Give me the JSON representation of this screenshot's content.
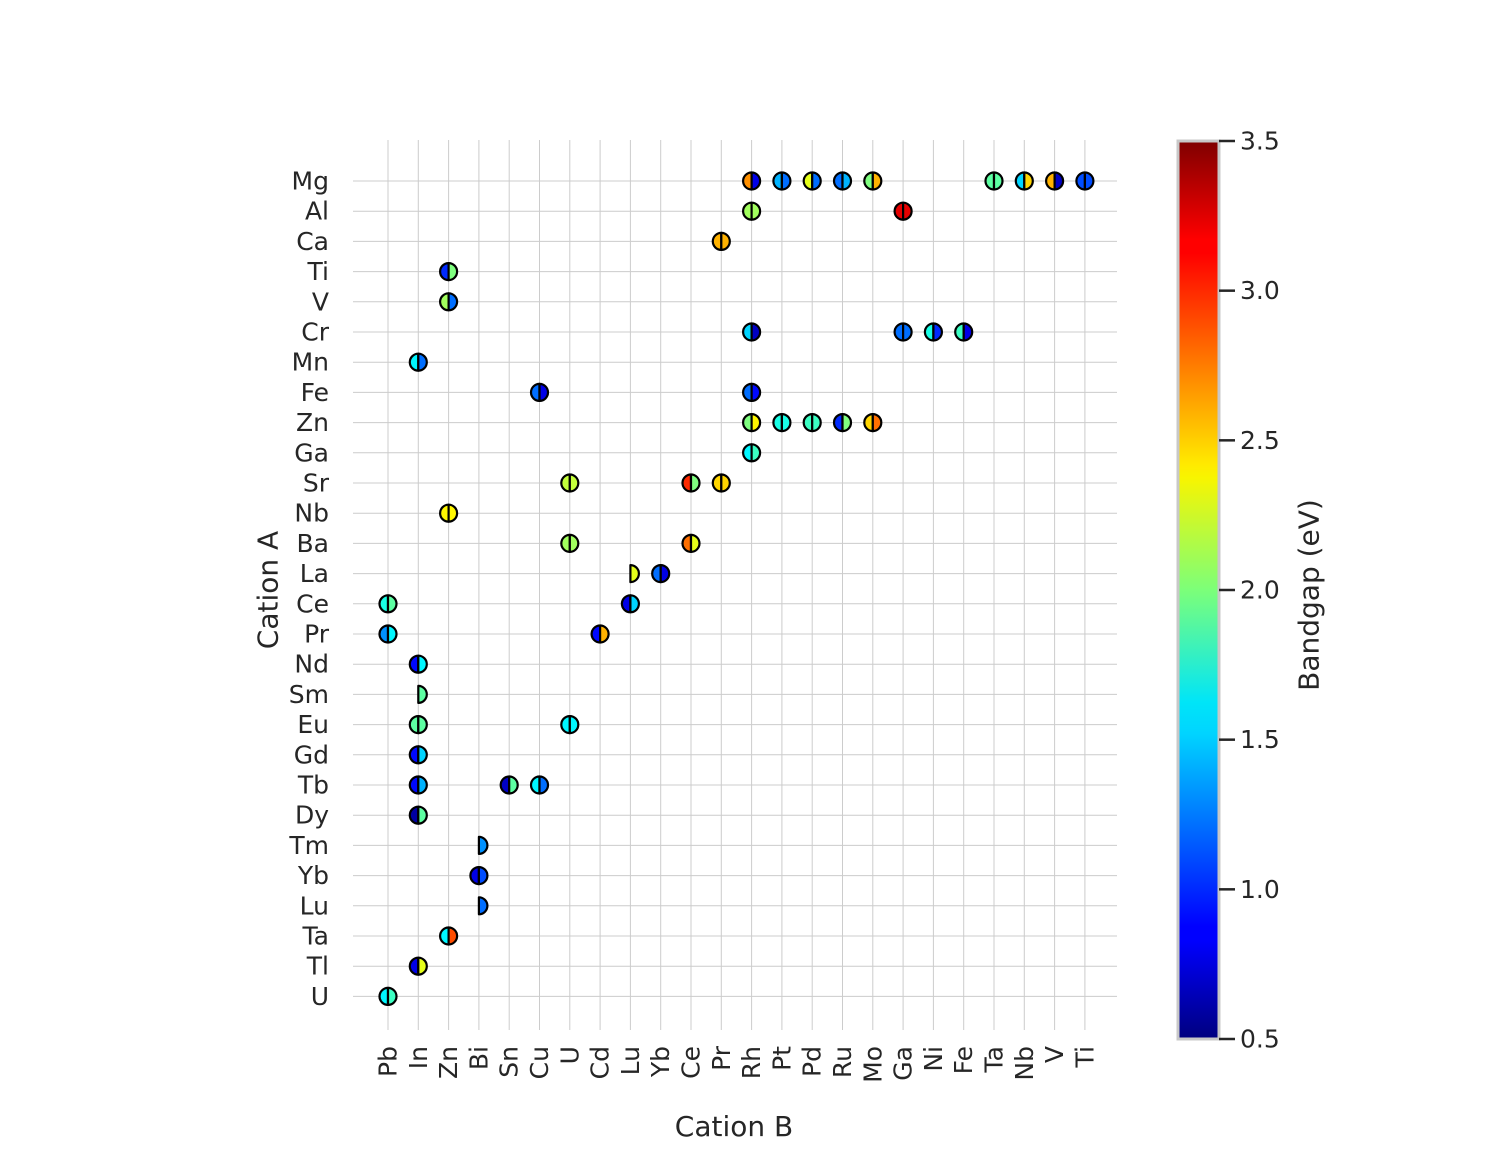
{
  "chart_data": {
    "type": "scatter",
    "xlabel": "Cation B",
    "ylabel": "Cation A",
    "x_categories": [
      "Pb",
      "In",
      "Zn",
      "Bi",
      "Sn",
      "Cu",
      "U",
      "Cd",
      "Lu",
      "Yb",
      "Ce",
      "Pr",
      "Rh",
      "Pt",
      "Pd",
      "Ru",
      "Mo",
      "Ga",
      "Ni",
      "Fe",
      "Ta",
      "Nb",
      "V",
      "Ti"
    ],
    "y_categories": [
      "Mg",
      "Al",
      "Ca",
      "Ti",
      "V",
      "Cr",
      "Mn",
      "Fe",
      "Zn",
      "Ga",
      "Sr",
      "Nb",
      "Ba",
      "La",
      "Ce",
      "Pr",
      "Nd",
      "Sm",
      "Eu",
      "Gd",
      "Tb",
      "Dy",
      "Tm",
      "Yb",
      "Lu",
      "Ta",
      "Tl",
      "U"
    ],
    "grid": true,
    "colorbar": {
      "label": "Bandgap (eV)",
      "range": [
        0.5,
        3.5
      ],
      "ticks": [
        "0.5",
        "1.0",
        "1.5",
        "2.0",
        "2.5",
        "3.0",
        "3.5"
      ],
      "colormap": "jet"
    },
    "marker": "circle split into left and right halves, each half colored by a bandgap value",
    "points": [
      {
        "a": "Mg",
        "b": "Rh",
        "left": 2.7,
        "right": 0.8
      },
      {
        "a": "Mg",
        "b": "Pt",
        "left": 1.4,
        "right": 1.2
      },
      {
        "a": "Mg",
        "b": "Pd",
        "left": 2.3,
        "right": 1.2
      },
      {
        "a": "Mg",
        "b": "Ru",
        "left": 1.2,
        "right": 1.4
      },
      {
        "a": "Mg",
        "b": "Mo",
        "left": 2.0,
        "right": 2.6
      },
      {
        "a": "Mg",
        "b": "Ta",
        "left": 1.9,
        "right": 1.9
      },
      {
        "a": "Mg",
        "b": "Nb",
        "left": 1.5,
        "right": 2.5
      },
      {
        "a": "Mg",
        "b": "V",
        "left": 2.6,
        "right": 0.7
      },
      {
        "a": "Mg",
        "b": "Ti",
        "left": 1.1,
        "right": 1.1
      },
      {
        "a": "Al",
        "b": "Rh",
        "left": 2.1,
        "right": 2.1
      },
      {
        "a": "Al",
        "b": "Ga",
        "left": 3.2,
        "right": 3.2
      },
      {
        "a": "Ca",
        "b": "Pr",
        "left": 2.6,
        "right": 2.6
      },
      {
        "a": "Ti",
        "b": "Zn",
        "left": 1.0,
        "right": 2.0
      },
      {
        "a": "V",
        "b": "Zn",
        "left": 2.1,
        "right": 1.2
      },
      {
        "a": "Cr",
        "b": "Rh",
        "left": 1.5,
        "right": 0.7
      },
      {
        "a": "Cr",
        "b": "Ga",
        "left": 1.2,
        "right": 1.2
      },
      {
        "a": "Cr",
        "b": "Ni",
        "left": 1.7,
        "right": 1.0
      },
      {
        "a": "Cr",
        "b": "Fe",
        "left": 1.8,
        "right": 0.8
      },
      {
        "a": "Mn",
        "b": "In",
        "left": 1.6,
        "right": 1.2
      },
      {
        "a": "Fe",
        "b": "Cu",
        "left": 1.2,
        "right": 0.8
      },
      {
        "a": "Fe",
        "b": "Rh",
        "left": 1.2,
        "right": 0.9
      },
      {
        "a": "Zn",
        "b": "Rh",
        "left": 2.0,
        "right": 2.4
      },
      {
        "a": "Zn",
        "b": "Pt",
        "left": 1.7,
        "right": 1.7
      },
      {
        "a": "Zn",
        "b": "Pd",
        "left": 1.8,
        "right": 1.8
      },
      {
        "a": "Zn",
        "b": "Ru",
        "left": 1.0,
        "right": 2.0
      },
      {
        "a": "Zn",
        "b": "Mo",
        "left": 2.5,
        "right": 2.8
      },
      {
        "a": "Ga",
        "b": "Rh",
        "left": 1.6,
        "right": 1.8
      },
      {
        "a": "Sr",
        "b": "U",
        "left": 2.2,
        "right": 2.2
      },
      {
        "a": "Sr",
        "b": "Ce",
        "left": 3.0,
        "right": 2.0
      },
      {
        "a": "Sr",
        "b": "Pr",
        "left": 2.5,
        "right": 2.5
      },
      {
        "a": "Nb",
        "b": "Zn",
        "left": 2.4,
        "right": 2.4
      },
      {
        "a": "Ba",
        "b": "U",
        "left": 2.1,
        "right": 2.1
      },
      {
        "a": "Ba",
        "b": "Ce",
        "left": 2.8,
        "right": 2.3
      },
      {
        "a": "La",
        "b": "Lu",
        "left": null,
        "right": 2.3
      },
      {
        "a": "La",
        "b": "Yb",
        "left": 1.2,
        "right": 0.8
      },
      {
        "a": "Ce",
        "b": "Pb",
        "left": 1.7,
        "right": 1.9
      },
      {
        "a": "Ce",
        "b": "Lu",
        "left": 0.8,
        "right": 1.5
      },
      {
        "a": "Pr",
        "b": "Pb",
        "left": 1.3,
        "right": 1.6
      },
      {
        "a": "Pr",
        "b": "Cd",
        "left": 0.9,
        "right": 2.6
      },
      {
        "a": "Nd",
        "b": "In",
        "left": 0.9,
        "right": 1.6
      },
      {
        "a": "Sm",
        "b": "In",
        "left": null,
        "right": 1.9
      },
      {
        "a": "Eu",
        "b": "In",
        "left": 1.9,
        "right": 1.9
      },
      {
        "a": "Eu",
        "b": "U",
        "left": 1.6,
        "right": 1.6
      },
      {
        "a": "Gd",
        "b": "In",
        "left": 0.9,
        "right": 1.5
      },
      {
        "a": "Tb",
        "b": "In",
        "left": 0.9,
        "right": 1.4
      },
      {
        "a": "Tb",
        "b": "Sn",
        "left": 0.7,
        "right": 1.9
      },
      {
        "a": "Tb",
        "b": "Cu",
        "left": 1.6,
        "right": 1.2
      },
      {
        "a": "Dy",
        "b": "In",
        "left": 0.6,
        "right": 1.9
      },
      {
        "a": "Tm",
        "b": "Bi",
        "left": null,
        "right": 1.3
      },
      {
        "a": "Yb",
        "b": "Bi",
        "left": 0.8,
        "right": 1.1
      },
      {
        "a": "Lu",
        "b": "Bi",
        "left": null,
        "right": 1.2
      },
      {
        "a": "Ta",
        "b": "Zn",
        "left": 1.6,
        "right": 2.9
      },
      {
        "a": "Tl",
        "b": "In",
        "left": 0.8,
        "right": 2.3
      },
      {
        "a": "U",
        "b": "Pb",
        "left": 1.6,
        "right": 1.8
      }
    ]
  }
}
